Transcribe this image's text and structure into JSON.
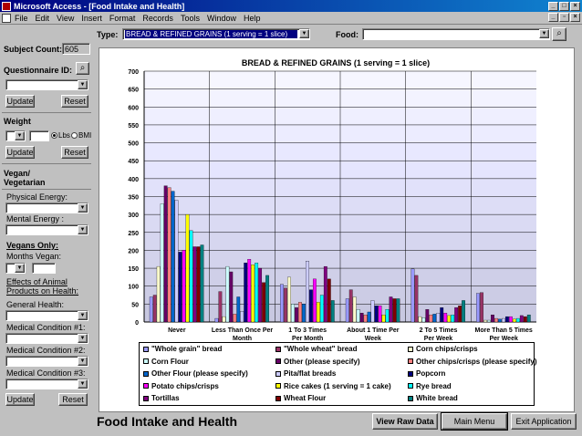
{
  "window": {
    "title": "Microsoft Access - [Food Intake and Health]"
  },
  "menu": [
    "File",
    "Edit",
    "View",
    "Insert",
    "Format",
    "Records",
    "Tools",
    "Window",
    "Help"
  ],
  "filters": {
    "type_label": "Type:",
    "type_value": "BREAD & REFINED GRAINS (1 serving = 1 slice)",
    "food_label": "Food:",
    "food_value": ""
  },
  "sidebar": {
    "subject_count_label": "Subject Count:",
    "subject_count_value": "605",
    "questionnaire_label": "Questionnaire ID:",
    "update_label": "Update",
    "reset_label": "Reset",
    "weight_label": "Weight",
    "lbs_label": "Lbs",
    "bmi_label": "BMI",
    "vegan_heading": "Vegan/ Vegetarian",
    "physical_energy_label": "Physical Energy:",
    "mental_energy_label": "Mental Energy :",
    "vegans_only_label": "Vegans Only:",
    "months_vegan_label": "Months Vegan:",
    "effects_label": "Effects of Animal Products on Health:",
    "general_health_label": "General Health:",
    "medical1_label": "Medical Condition #1:",
    "medical2_label": "Medical Condition #2:",
    "medical3_label": "Medical Condition #3:"
  },
  "footer": {
    "title": "Food Intake and Health",
    "view_raw_label": "View Raw Data",
    "main_menu_label": "Main Menu",
    "exit_label": "Exit Application"
  },
  "chart_data": {
    "type": "bar",
    "title": "BREAD & REFINED GRAINS (1 serving = 1 slice)",
    "ylim": [
      0,
      700
    ],
    "yticks": [
      0,
      50,
      100,
      150,
      200,
      250,
      300,
      350,
      400,
      450,
      500,
      550,
      600,
      650,
      700
    ],
    "categories": [
      "Never",
      "Less Than Once Per Month",
      "1 To 3 Times Per Month",
      "About 1 Time Per Week",
      "2 To 5 Times Per Week",
      "More Than 5 Times Per Week"
    ],
    "series": [
      {
        "name": "\"Whole grain\" bread",
        "color": "#9999ff",
        "values": [
          70,
          10,
          105,
          65,
          148,
          80
        ]
      },
      {
        "name": "\"Whole wheat\" bread",
        "color": "#993366",
        "values": [
          75,
          85,
          95,
          90,
          130,
          82
        ]
      },
      {
        "name": "Corn chips/crisps",
        "color": "#ffffcc",
        "values": [
          155,
          15,
          125,
          70,
          15,
          5
        ]
      },
      {
        "name": "Corn Flour",
        "color": "#ccffff",
        "values": [
          330,
          155,
          50,
          35,
          12,
          5
        ]
      },
      {
        "name": "Other (please specify)",
        "color": "#660066",
        "values": [
          380,
          140,
          40,
          25,
          35,
          20
        ]
      },
      {
        "name": "Other chips/crisps (please specify)",
        "color": "#ff8080",
        "values": [
          375,
          22,
          55,
          20,
          20,
          10
        ]
      },
      {
        "name": "Other Flour (please specify)",
        "color": "#0066cc",
        "values": [
          365,
          70,
          50,
          28,
          22,
          8
        ]
      },
      {
        "name": "Pita/flat breads",
        "color": "#ccccff",
        "values": [
          340,
          30,
          170,
          60,
          25,
          10
        ]
      },
      {
        "name": "Popcorn",
        "color": "#000080",
        "values": [
          195,
          165,
          90,
          45,
          40,
          15
        ]
      },
      {
        "name": "Potato chips/crisps",
        "color": "#ff00ff",
        "values": [
          200,
          175,
          120,
          45,
          25,
          15
        ]
      },
      {
        "name": "Rice cakes (1 serving = 1 cake)",
        "color": "#ffff00",
        "values": [
          300,
          160,
          55,
          20,
          18,
          8
        ]
      },
      {
        "name": "Rye bread",
        "color": "#00ffff",
        "values": [
          255,
          165,
          75,
          35,
          20,
          10
        ]
      },
      {
        "name": "Tortillas",
        "color": "#800080",
        "values": [
          210,
          150,
          155,
          70,
          40,
          18
        ]
      },
      {
        "name": "Wheat Flour",
        "color": "#800000",
        "values": [
          210,
          110,
          120,
          65,
          45,
          15
        ]
      },
      {
        "name": "White bread",
        "color": "#008080",
        "values": [
          215,
          130,
          60,
          65,
          60,
          20
        ]
      }
    ]
  }
}
